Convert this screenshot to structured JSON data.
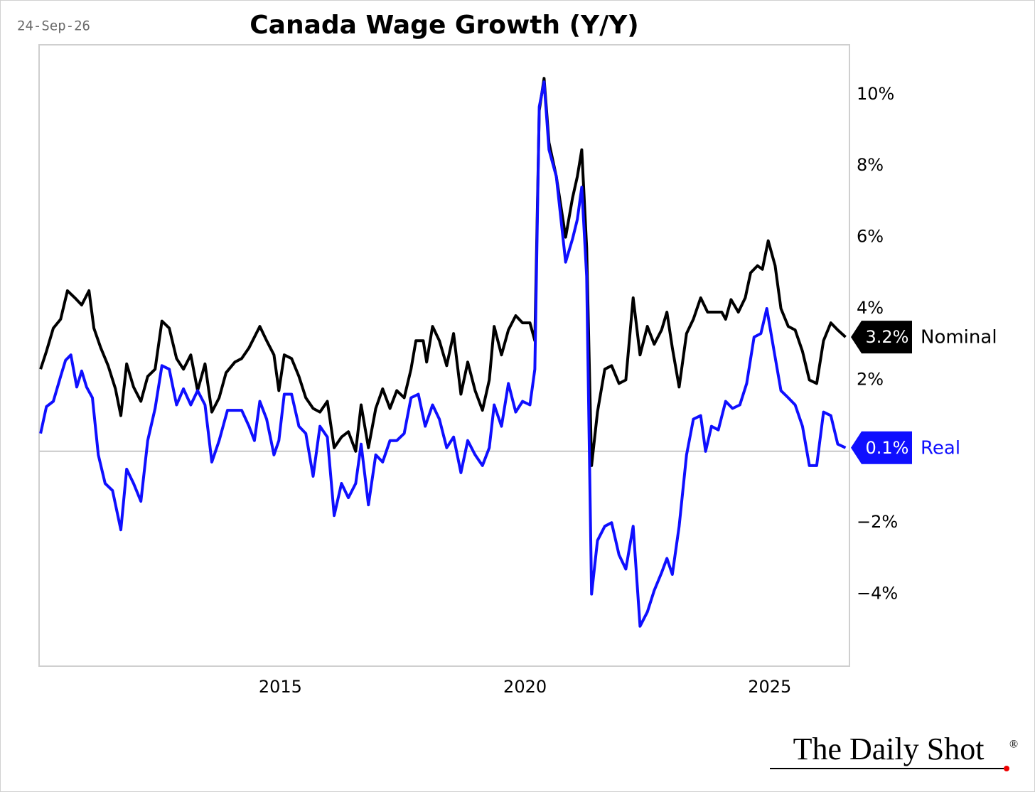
{
  "chart_data": {
    "type": "line",
    "title": "Canada Wage Growth (Y/Y)",
    "date": "24-Sep-26",
    "source": "The Daily Shot",
    "source_mark": "®",
    "xlim": [
      2010.07,
      2026.63
    ],
    "xticks": [
      2015,
      2020,
      2025
    ],
    "ylim": [
      -6.02,
      11.39
    ],
    "yticks": [
      {
        "value": -4,
        "label": "−4%"
      },
      {
        "value": -2,
        "label": "−2%"
      },
      {
        "value": 2,
        "label": "2%"
      },
      {
        "value": 4,
        "label": "4%"
      },
      {
        "value": 6,
        "label": "6%"
      },
      {
        "value": 8,
        "label": "8%"
      },
      {
        "value": 10,
        "label": "10%"
      }
    ],
    "series": [
      {
        "name": "Nominal",
        "color": "#000000",
        "end_label": "3.2%",
        "x": [
          2010.1,
          2010.22,
          2010.36,
          2010.51,
          2010.65,
          2010.8,
          2010.94,
          2011.09,
          2011.19,
          2011.33,
          2011.48,
          2011.63,
          2011.74,
          2011.86,
          2012.0,
          2012.15,
          2012.29,
          2012.44,
          2012.58,
          2012.73,
          2012.88,
          2013.02,
          2013.17,
          2013.31,
          2013.46,
          2013.6,
          2013.75,
          2013.89,
          2014.07,
          2014.21,
          2014.36,
          2014.58,
          2014.72,
          2014.87,
          2014.97,
          2015.08,
          2015.23,
          2015.38,
          2015.52,
          2015.67,
          2015.81,
          2015.96,
          2016.1,
          2016.25,
          2016.39,
          2016.54,
          2016.65,
          2016.8,
          2016.95,
          2017.09,
          2017.24,
          2017.38,
          2017.53,
          2017.67,
          2017.77,
          2017.92,
          2017.99,
          2018.11,
          2018.25,
          2018.4,
          2018.54,
          2018.69,
          2018.83,
          2018.98,
          2019.13,
          2019.27,
          2019.37,
          2019.52,
          2019.66,
          2019.81,
          2019.95,
          2020.1,
          2020.2,
          2020.29,
          2020.39,
          2020.49,
          2020.64,
          2020.83,
          2020.97,
          2021.07,
          2021.16,
          2021.26,
          2021.36,
          2021.48,
          2021.63,
          2021.77,
          2021.92,
          2022.06,
          2022.21,
          2022.35,
          2022.5,
          2022.64,
          2022.79,
          2022.9,
          2023.01,
          2023.15,
          2023.3,
          2023.44,
          2023.59,
          2023.73,
          2023.88,
          2024.02,
          2024.1,
          2024.21,
          2024.36,
          2024.5,
          2024.61,
          2024.75,
          2024.85,
          2024.97,
          2025.11,
          2025.23,
          2025.38,
          2025.52,
          2025.67,
          2025.81,
          2025.96,
          2026.1,
          2026.25,
          2026.39,
          2026.55
        ],
        "values": [
          2.3,
          2.8,
          3.45,
          3.7,
          4.5,
          4.3,
          4.1,
          4.5,
          3.45,
          2.9,
          2.4,
          1.75,
          1.0,
          2.45,
          1.8,
          1.4,
          2.1,
          2.3,
          3.65,
          3.45,
          2.6,
          2.3,
          2.7,
          1.7,
          2.45,
          1.1,
          1.5,
          2.2,
          2.5,
          2.6,
          2.9,
          3.5,
          3.1,
          2.7,
          1.7,
          2.7,
          2.6,
          2.1,
          1.5,
          1.2,
          1.1,
          1.4,
          0.1,
          0.4,
          0.55,
          0,
          1.3,
          0.1,
          1.2,
          1.75,
          1.2,
          1.7,
          1.5,
          2.3,
          3.1,
          3.1,
          2.5,
          3.5,
          3.1,
          2.4,
          3.3,
          1.6,
          2.5,
          1.7,
          1.15,
          2.0,
          3.5,
          2.7,
          3.4,
          3.8,
          3.6,
          3.6,
          3.1,
          9.55,
          10.45,
          8.65,
          7.7,
          6.0,
          7.1,
          7.7,
          8.45,
          5.7,
          -0.4,
          1.1,
          2.3,
          2.4,
          1.9,
          2.0,
          4.3,
          2.7,
          3.5,
          3.0,
          3.4,
          3.9,
          2.9,
          1.8,
          3.3,
          3.7,
          4.3,
          3.9,
          3.9,
          3.9,
          3.7,
          4.25,
          3.9,
          4.3,
          5.0,
          5.2,
          5.1,
          5.9,
          5.2,
          4.0,
          3.5,
          3.4,
          2.8,
          2.0,
          1.9,
          3.1,
          3.6,
          3.4,
          3.2
        ]
      },
      {
        "name": "Real",
        "color": "#0f0fff",
        "end_label": "0.1%",
        "x": [
          2010.1,
          2010.22,
          2010.36,
          2010.51,
          2010.61,
          2010.72,
          2010.84,
          2010.94,
          2011.04,
          2011.16,
          2011.28,
          2011.42,
          2011.57,
          2011.74,
          2011.86,
          2012.0,
          2012.15,
          2012.29,
          2012.44,
          2012.58,
          2012.73,
          2012.88,
          2013.02,
          2013.17,
          2013.31,
          2013.46,
          2013.6,
          2013.75,
          2013.92,
          2014.07,
          2014.21,
          2014.36,
          2014.47,
          2014.58,
          2014.72,
          2014.87,
          2014.97,
          2015.08,
          2015.23,
          2015.38,
          2015.52,
          2015.67,
          2015.81,
          2015.96,
          2016.1,
          2016.25,
          2016.39,
          2016.54,
          2016.65,
          2016.8,
          2016.95,
          2017.09,
          2017.24,
          2017.38,
          2017.53,
          2017.67,
          2017.82,
          2017.96,
          2018.11,
          2018.25,
          2018.4,
          2018.54,
          2018.69,
          2018.83,
          2018.98,
          2019.13,
          2019.27,
          2019.37,
          2019.52,
          2019.66,
          2019.81,
          2019.95,
          2020.1,
          2020.2,
          2020.29,
          2020.39,
          2020.49,
          2020.64,
          2020.83,
          2020.97,
          2021.07,
          2021.16,
          2021.26,
          2021.36,
          2021.48,
          2021.63,
          2021.77,
          2021.92,
          2022.06,
          2022.21,
          2022.35,
          2022.5,
          2022.64,
          2022.79,
          2022.9,
          2023.01,
          2023.15,
          2023.3,
          2023.44,
          2023.59,
          2023.69,
          2023.81,
          2023.95,
          2024.1,
          2024.24,
          2024.39,
          2024.53,
          2024.68,
          2024.82,
          2024.94,
          2025.09,
          2025.23,
          2025.38,
          2025.52,
          2025.67,
          2025.81,
          2025.96,
          2026.1,
          2026.25,
          2026.39,
          2026.55
        ],
        "values": [
          0.5,
          1.25,
          1.4,
          2.1,
          2.55,
          2.7,
          1.8,
          2.25,
          1.8,
          1.5,
          -0.1,
          -0.9,
          -1.1,
          -2.2,
          -0.5,
          -0.9,
          -1.4,
          0.3,
          1.2,
          2.4,
          2.3,
          1.3,
          1.75,
          1.3,
          1.7,
          1.3,
          -0.3,
          0.3,
          1.15,
          1.15,
          1.15,
          0.7,
          0.3,
          1.4,
          0.9,
          -0.1,
          0.3,
          1.6,
          1.6,
          0.7,
          0.5,
          -0.7,
          0.7,
          0.4,
          -1.8,
          -0.9,
          -1.3,
          -0.9,
          0.2,
          -1.5,
          -0.1,
          -0.3,
          0.3,
          0.3,
          0.5,
          1.5,
          1.6,
          0.7,
          1.3,
          0.9,
          0.1,
          0.4,
          -0.6,
          0.3,
          -0.1,
          -0.4,
          0.1,
          1.3,
          0.7,
          1.9,
          1.1,
          1.4,
          1.3,
          2.3,
          9.65,
          10.35,
          8.45,
          7.7,
          5.3,
          5.95,
          6.5,
          7.4,
          4.9,
          -4.0,
          -2.5,
          -2.1,
          -2.0,
          -2.9,
          -3.3,
          -2.1,
          -4.9,
          -4.5,
          -3.9,
          -3.4,
          -3.0,
          -3.45,
          -2.1,
          -0.1,
          0.9,
          1.0,
          0,
          0.7,
          0.6,
          1.4,
          1.2,
          1.3,
          1.9,
          3.2,
          3.3,
          4.0,
          2.8,
          1.7,
          1.5,
          1.3,
          0.7,
          -0.4,
          -0.4,
          1.1,
          1.0,
          0.2,
          0.1
        ]
      }
    ]
  }
}
